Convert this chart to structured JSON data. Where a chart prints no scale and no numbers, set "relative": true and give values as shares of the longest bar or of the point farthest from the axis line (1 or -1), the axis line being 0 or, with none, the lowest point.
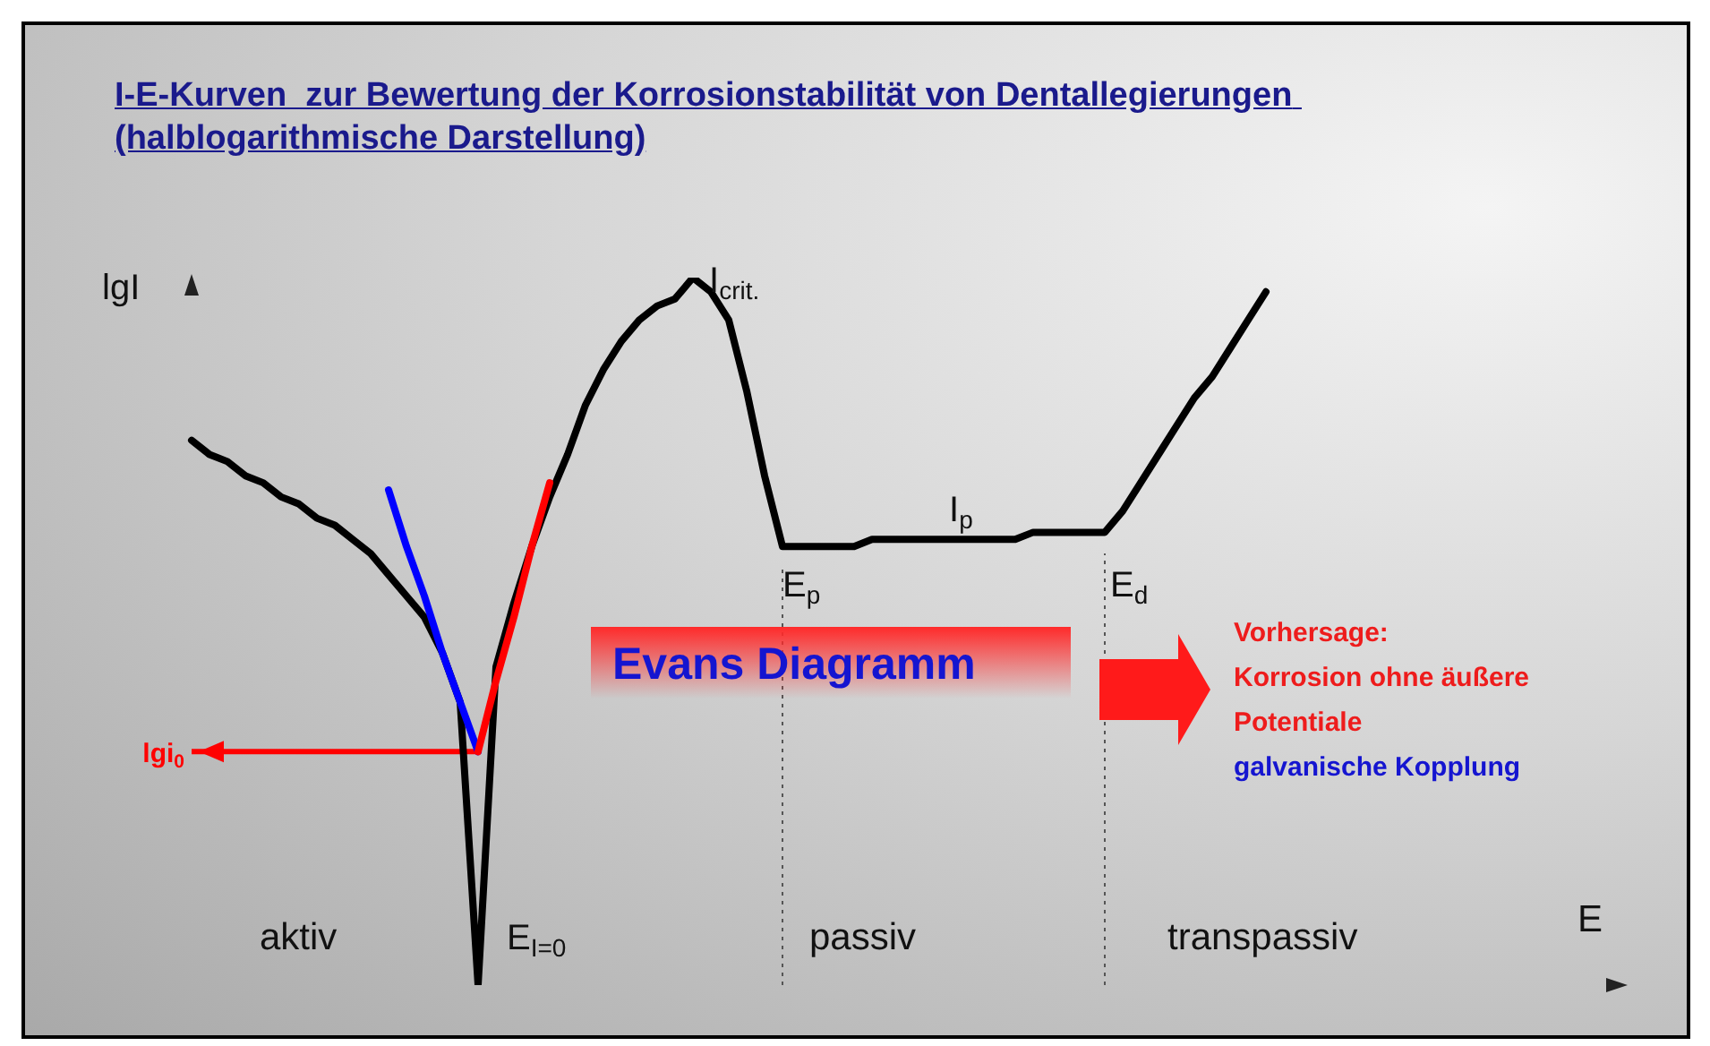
{
  "chart_data": {
    "type": "line",
    "title": "I-E-Kurven  zur Bewertung der Korrosionstabilität von Dentallegierungen (halblogarithmische Darstellung)",
    "xlabel": "E",
    "ylabel": "lgI",
    "relative": true,
    "line_style": "solid",
    "categories": [
      null,
      null,
      null,
      null,
      null,
      null,
      null,
      null,
      null,
      null,
      null,
      null,
      null,
      null,
      null,
      null,
      null,
      null,
      null,
      null,
      null,
      null,
      null,
      null,
      null,
      null,
      null,
      null,
      null,
      null,
      null,
      null,
      null,
      null,
      null,
      null,
      null,
      null,
      null,
      null,
      null,
      null,
      null,
      null,
      null,
      null,
      null,
      null,
      null,
      null,
      null,
      null,
      null,
      null,
      null,
      null,
      null,
      null,
      null,
      null,
      null,
      null,
      null,
      null,
      null,
      null,
      null,
      null,
      null,
      null,
      null,
      null,
      null,
      null,
      null,
      null,
      null,
      null,
      null,
      null,
      null
    ],
    "series": [
      {
        "color": "#000000",
        "values": [
          0.77,
          0.75,
          0.74,
          0.72,
          0.71,
          0.69,
          0.68,
          0.66,
          0.65,
          0.63,
          0.61,
          0.58,
          0.55,
          0.52,
          0.47,
          0.4,
          0,
          0.45,
          0.54,
          0.62,
          0.69,
          0.75,
          0.82,
          0.87,
          0.91,
          0.94,
          0.96,
          0.97,
          1,
          0.98,
          0.94,
          0.84,
          0.72,
          0.62,
          0.62,
          0.62,
          0.62,
          0.62,
          0.63,
          0.63,
          0.63,
          0.63,
          0.63,
          0.63,
          0.63,
          0.63,
          0.63,
          0.64,
          0.64,
          0.64,
          0.64,
          0.64,
          0.67,
          0.71,
          0.75,
          0.79,
          0.83,
          0.86,
          0.9,
          0.94,
          0.98,
          null,
          null,
          null,
          null,
          null,
          null,
          null,
          null,
          null,
          null,
          null,
          null,
          null,
          null,
          null,
          null,
          null,
          null,
          null,
          null
        ]
      },
      {
        "color": "#0000ff",
        "values": [
          null,
          null,
          null,
          null,
          null,
          null,
          null,
          null,
          null,
          null,
          null,
          0.7,
          0.62,
          0.55,
          0.47,
          0.4,
          0.33,
          null,
          null,
          null,
          null,
          null,
          null,
          null,
          null,
          null,
          null,
          null,
          null,
          null,
          null,
          null,
          null,
          null,
          null,
          null,
          null,
          null,
          null,
          null,
          null,
          null,
          null,
          null,
          null,
          null,
          null,
          null,
          null,
          null,
          null,
          null,
          null,
          null,
          null,
          null,
          null,
          null,
          null,
          null,
          null,
          null,
          null,
          null,
          null,
          null,
          null,
          null,
          null,
          null,
          null,
          null,
          null,
          null,
          null,
          null,
          null,
          null,
          null,
          null,
          null
        ]
      },
      {
        "color": "#ff0000",
        "values": [
          null,
          null,
          null,
          null,
          null,
          null,
          null,
          null,
          null,
          null,
          null,
          null,
          null,
          null,
          null,
          null,
          0.33,
          0.43,
          0.52,
          0.62,
          0.71,
          null,
          null,
          null,
          null,
          null,
          null,
          null,
          null,
          null,
          null,
          null,
          null,
          null,
          null,
          null,
          null,
          null,
          null,
          null,
          null,
          null,
          null,
          null,
          null,
          null,
          null,
          null,
          null,
          null,
          null,
          null,
          null,
          null,
          null,
          null,
          null,
          null,
          null,
          null,
          null,
          null,
          null,
          null,
          null,
          null,
          null,
          null,
          null,
          null,
          null,
          null,
          null,
          null,
          null,
          null,
          null,
          null,
          null,
          null,
          null
        ]
      }
    ],
    "ref_lines": [
      {
        "axis": "y",
        "value": 0.33,
        "label": "lgi$_{0}$",
        "color": "#ff0000"
      }
    ],
    "annotations": [
      "I$_{crit.}$",
      "I$_{p}$",
      "E$_{p}$",
      "E$_{d}$",
      "E$_{I=0}$",
      "aktiv",
      "passiv",
      "transpassiv",
      "Evans Diagramm",
      "Vorhersage:",
      "Korrosion ohne äußere",
      "Potentiale",
      "galvanische Kopplung"
    ]
  }
}
